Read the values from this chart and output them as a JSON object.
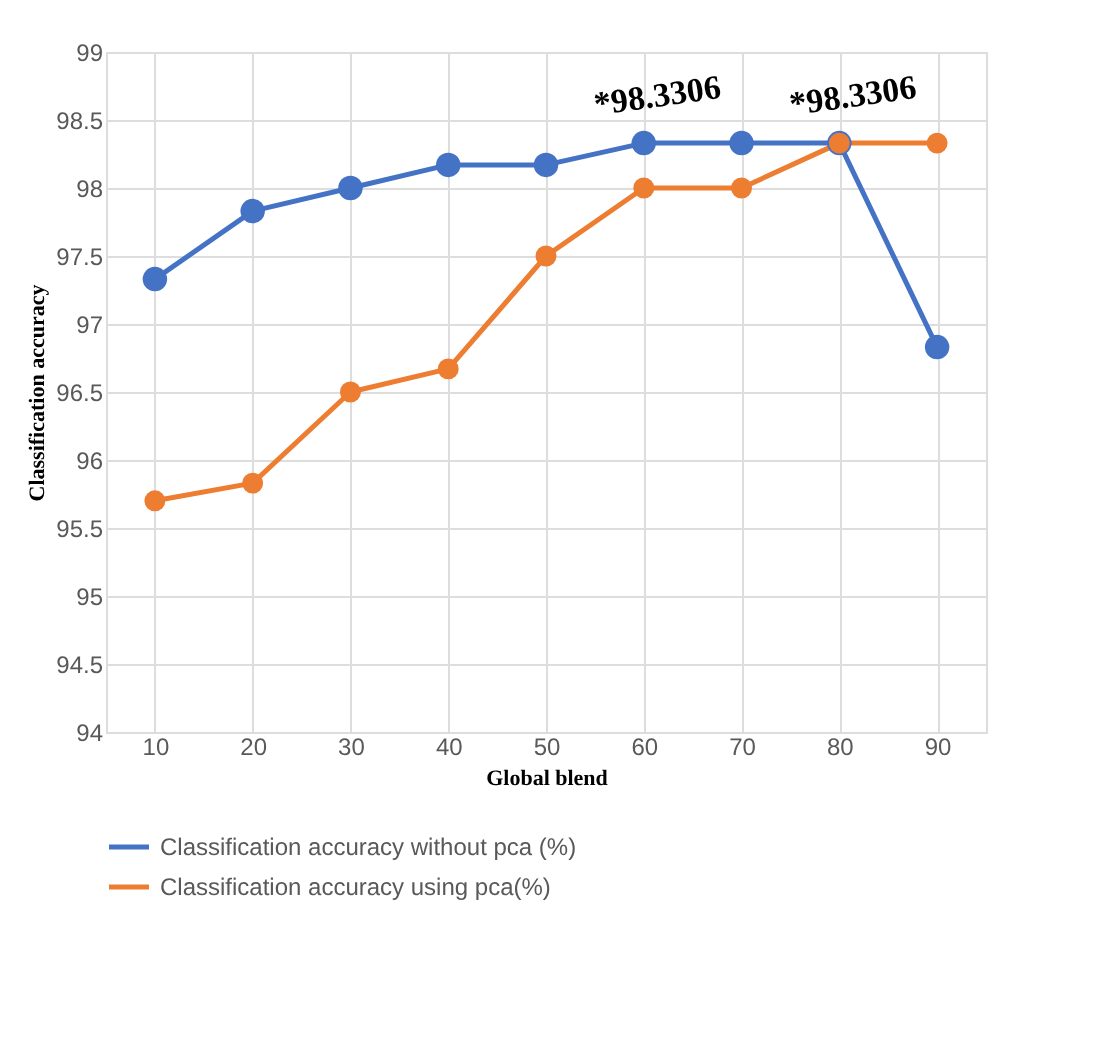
{
  "chart_data": {
    "type": "line",
    "xlabel": "Global blend",
    "ylabel": "Classification accuracy",
    "categories": [
      "10",
      "20",
      "30",
      "40",
      "50",
      "60",
      "70",
      "80",
      "90"
    ],
    "series": [
      {
        "name": "Classification accuracy without pca (%)",
        "color": "#4472c4",
        "values": [
          97.33,
          97.83,
          98.0,
          98.17,
          98.17,
          98.33,
          98.33,
          98.33,
          96.83
        ]
      },
      {
        "name": "Classification accuracy using pca(%)",
        "color": "#ed7d31",
        "values": [
          95.7,
          95.83,
          96.5,
          96.67,
          97.5,
          98.0,
          98.0,
          98.33,
          98.33
        ]
      }
    ],
    "ylim": [
      94,
      99
    ],
    "yticks": [
      94,
      94.5,
      95,
      95.5,
      96,
      96.5,
      97,
      97.5,
      98,
      98.5,
      99
    ],
    "annotations": [
      {
        "text": "*98.3306",
        "x": "60",
        "y": 98.3306
      },
      {
        "text": "*98.3306",
        "x": "80",
        "y": 98.3306
      }
    ],
    "grid": true,
    "legend": "bottom",
    "marker": "circle",
    "line_style": "solid"
  }
}
